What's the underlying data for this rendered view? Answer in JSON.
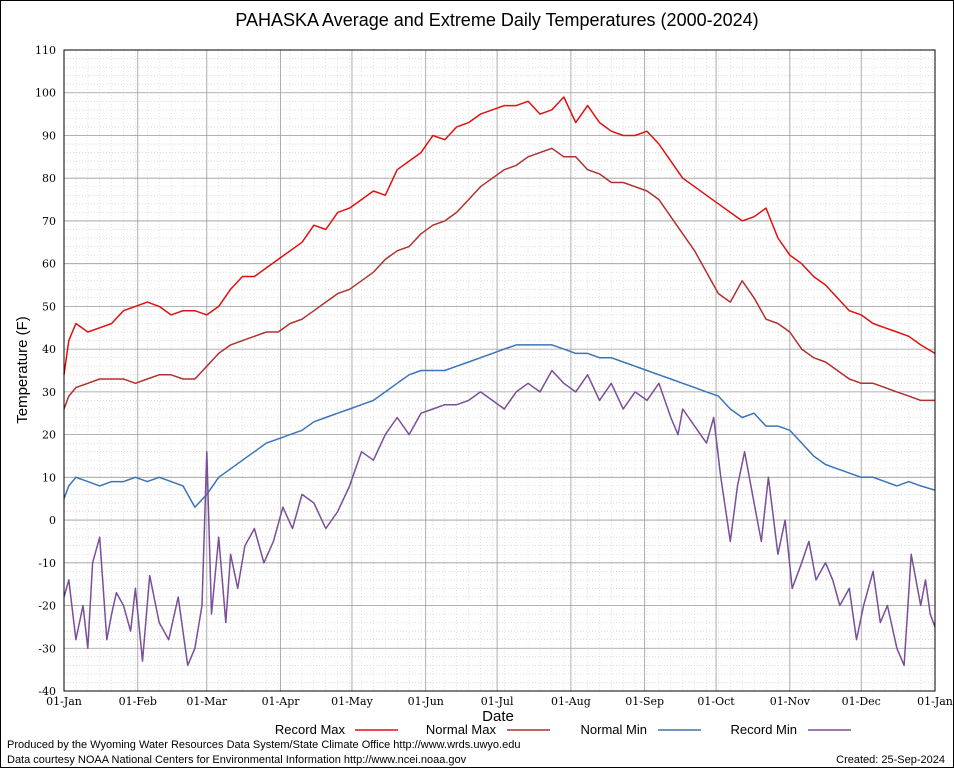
{
  "chart_data": {
    "type": "line",
    "title": "PAHASKA Average and Extreme Daily Temperatures (2000-2024)",
    "xlabel": "Date",
    "ylabel": "Temperature (F)",
    "ylim": [
      -40,
      110
    ],
    "yticks": [
      -40,
      -30,
      -20,
      -10,
      0,
      10,
      20,
      30,
      40,
      50,
      60,
      70,
      80,
      90,
      100,
      110
    ],
    "xlim_days": [
      0,
      366
    ],
    "xticks": [
      {
        "label": "01-Jan",
        "day": 0
      },
      {
        "label": "01-Feb",
        "day": 31
      },
      {
        "label": "01-Mar",
        "day": 60
      },
      {
        "label": "01-Apr",
        "day": 91
      },
      {
        "label": "01-May",
        "day": 121
      },
      {
        "label": "01-Jun",
        "day": 152
      },
      {
        "label": "01-Jul",
        "day": 182
      },
      {
        "label": "01-Aug",
        "day": 213
      },
      {
        "label": "01-Sep",
        "day": 244
      },
      {
        "label": "01-Oct",
        "day": 274
      },
      {
        "label": "01-Nov",
        "day": 305
      },
      {
        "label": "01-Dec",
        "day": 335
      },
      {
        "label": "01-Jan",
        "day": 366
      }
    ],
    "grid": true,
    "legend_position": "bottom",
    "series": [
      {
        "name": "Record Max",
        "color": "#e01010",
        "days": [
          0,
          2,
          5,
          10,
          15,
          20,
          25,
          30,
          35,
          40,
          45,
          50,
          55,
          60,
          65,
          70,
          75,
          80,
          85,
          90,
          95,
          100,
          105,
          110,
          115,
          120,
          125,
          130,
          135,
          140,
          145,
          150,
          155,
          160,
          165,
          170,
          175,
          180,
          185,
          190,
          195,
          200,
          205,
          210,
          215,
          220,
          225,
          230,
          235,
          240,
          245,
          250,
          255,
          260,
          265,
          270,
          275,
          280,
          285,
          290,
          295,
          300,
          305,
          310,
          315,
          320,
          325,
          330,
          335,
          340,
          345,
          350,
          355,
          360,
          366
        ],
        "values": [
          34,
          42,
          46,
          44,
          45,
          46,
          49,
          50,
          51,
          50,
          48,
          49,
          49,
          48,
          50,
          54,
          57,
          57,
          59,
          61,
          63,
          65,
          69,
          68,
          72,
          73,
          75,
          77,
          76,
          82,
          84,
          86,
          90,
          89,
          92,
          93,
          95,
          96,
          97,
          97,
          98,
          95,
          96,
          99,
          93,
          97,
          93,
          91,
          90,
          90,
          91,
          88,
          84,
          80,
          78,
          76,
          74,
          72,
          70,
          71,
          73,
          66,
          62,
          60,
          57,
          55,
          52,
          49,
          48,
          46,
          45,
          44,
          43,
          41,
          39
        ]
      },
      {
        "name": "Normal Max",
        "color": "#b03030",
        "days": [
          0,
          2,
          5,
          10,
          15,
          20,
          25,
          30,
          35,
          40,
          45,
          50,
          55,
          60,
          65,
          70,
          75,
          80,
          85,
          90,
          95,
          100,
          105,
          110,
          115,
          120,
          125,
          130,
          135,
          140,
          145,
          150,
          155,
          160,
          165,
          170,
          175,
          180,
          185,
          190,
          195,
          200,
          205,
          210,
          215,
          220,
          225,
          230,
          235,
          240,
          245,
          250,
          255,
          260,
          265,
          270,
          275,
          280,
          285,
          290,
          295,
          300,
          305,
          310,
          315,
          320,
          325,
          330,
          335,
          340,
          345,
          350,
          355,
          360,
          366
        ],
        "values": [
          26,
          29,
          31,
          32,
          33,
          33,
          33,
          32,
          33,
          34,
          34,
          33,
          33,
          36,
          39,
          41,
          42,
          43,
          44,
          44,
          46,
          47,
          49,
          51,
          53,
          54,
          56,
          58,
          61,
          63,
          64,
          67,
          69,
          70,
          72,
          75,
          78,
          80,
          82,
          83,
          85,
          86,
          87,
          85,
          85,
          82,
          81,
          79,
          79,
          78,
          77,
          75,
          71,
          67,
          63,
          58,
          53,
          51,
          56,
          52,
          47,
          46,
          44,
          40,
          38,
          37,
          35,
          33,
          32,
          32,
          31,
          30,
          29,
          28,
          28
        ]
      },
      {
        "name": "Normal Min",
        "color": "#3a74b8",
        "days": [
          0,
          2,
          5,
          10,
          15,
          20,
          25,
          30,
          35,
          40,
          45,
          50,
          55,
          60,
          65,
          70,
          75,
          80,
          85,
          90,
          95,
          100,
          105,
          110,
          115,
          120,
          125,
          130,
          135,
          140,
          145,
          150,
          155,
          160,
          165,
          170,
          175,
          180,
          185,
          190,
          195,
          200,
          205,
          210,
          215,
          220,
          225,
          230,
          235,
          240,
          245,
          250,
          255,
          260,
          265,
          270,
          275,
          280,
          285,
          290,
          295,
          300,
          305,
          310,
          315,
          320,
          325,
          330,
          335,
          340,
          345,
          350,
          355,
          360,
          366
        ],
        "values": [
          5,
          8,
          10,
          9,
          8,
          9,
          9,
          10,
          9,
          10,
          9,
          8,
          3,
          6,
          10,
          12,
          14,
          16,
          18,
          19,
          20,
          21,
          23,
          24,
          25,
          26,
          27,
          28,
          30,
          32,
          34,
          35,
          35,
          35,
          36,
          37,
          38,
          39,
          40,
          41,
          41,
          41,
          41,
          40,
          39,
          39,
          38,
          38,
          37,
          36,
          35,
          34,
          33,
          32,
          31,
          30,
          29,
          26,
          24,
          25,
          22,
          22,
          21,
          18,
          15,
          13,
          12,
          11,
          10,
          10,
          9,
          8,
          9,
          8,
          7
        ]
      },
      {
        "name": "Record Min",
        "color": "#7a4f9a",
        "days": [
          0,
          2,
          5,
          8,
          10,
          12,
          15,
          18,
          20,
          22,
          25,
          28,
          30,
          33,
          36,
          40,
          44,
          48,
          52,
          55,
          58,
          60,
          62,
          65,
          68,
          70,
          73,
          76,
          80,
          84,
          88,
          92,
          96,
          100,
          105,
          110,
          115,
          120,
          125,
          130,
          135,
          140,
          145,
          150,
          155,
          160,
          165,
          170,
          175,
          180,
          185,
          190,
          195,
          200,
          205,
          210,
          215,
          220,
          225,
          230,
          235,
          240,
          245,
          250,
          255,
          258,
          260,
          265,
          270,
          273,
          276,
          280,
          283,
          286,
          290,
          293,
          296,
          300,
          303,
          306,
          310,
          313,
          316,
          320,
          323,
          326,
          330,
          333,
          336,
          340,
          343,
          346,
          350,
          353,
          356,
          360,
          362,
          364,
          366
        ],
        "values": [
          -18,
          -14,
          -28,
          -20,
          -30,
          -10,
          -4,
          -28,
          -22,
          -17,
          -20,
          -26,
          -16,
          -33,
          -13,
          -24,
          -28,
          -18,
          -34,
          -30,
          -20,
          16,
          -22,
          -4,
          -24,
          -8,
          -16,
          -6,
          -2,
          -10,
          -5,
          3,
          -2,
          6,
          4,
          -2,
          2,
          8,
          16,
          14,
          20,
          24,
          20,
          25,
          26,
          27,
          27,
          28,
          30,
          28,
          26,
          30,
          32,
          30,
          35,
          32,
          30,
          34,
          28,
          32,
          26,
          30,
          28,
          32,
          24,
          20,
          26,
          22,
          18,
          24,
          10,
          -5,
          8,
          16,
          4,
          -5,
          10,
          -8,
          0,
          -16,
          -10,
          -5,
          -14,
          -10,
          -14,
          -20,
          -16,
          -28,
          -20,
          -12,
          -24,
          -20,
          -30,
          -34,
          -8,
          -20,
          -14,
          -22,
          -25
        ]
      }
    ]
  },
  "footer": {
    "produced_by": "Produced by the Wyoming Water Resources Data System/State Climate Office http://www.wrds.uwyo.edu",
    "data_courtesy": "Data courtesy NOAA National Centers for Environmental Information http://www.ncei.noaa.gov",
    "created": "Created:  25-Sep-2024"
  }
}
